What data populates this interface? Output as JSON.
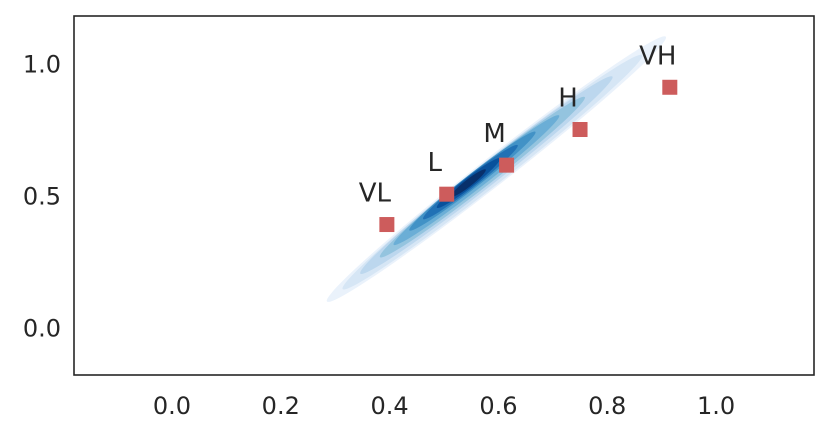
{
  "chart_data": {
    "type": "scatter",
    "title": "",
    "xlabel": "",
    "ylabel": "",
    "xlim": [
      -0.18,
      1.18
    ],
    "ylim": [
      -0.18,
      1.18
    ],
    "x_ticks": [
      "0.0",
      "0.2",
      "0.4",
      "0.6",
      "0.8",
      "1.0"
    ],
    "x_tick_values": [
      0.0,
      0.2,
      0.4,
      0.6,
      0.8,
      1.0
    ],
    "y_ticks": [
      "0.0",
      "0.5",
      "1.0"
    ],
    "y_tick_values": [
      0.0,
      0.5,
      1.0
    ],
    "grid": false,
    "density": {
      "kind": "kde-contour",
      "center": [
        0.6,
        0.6
      ],
      "direction_angle_deg": 38,
      "colors": [
        "#eaf2fb",
        "#d6e6f5",
        "#bcd7ee",
        "#94c4df",
        "#6baed6",
        "#4292c6",
        "#2171b5",
        "#08519c",
        "#08306b"
      ]
    },
    "points": [
      {
        "label": "VL",
        "x": 0.395,
        "y": 0.39
      },
      {
        "label": "L",
        "x": 0.505,
        "y": 0.505
      },
      {
        "label": "M",
        "x": 0.615,
        "y": 0.615
      },
      {
        "label": "H",
        "x": 0.75,
        "y": 0.75
      },
      {
        "label": "VH",
        "x": 0.915,
        "y": 0.91
      }
    ],
    "point_color": "#cd5c5c",
    "marker": "square"
  }
}
